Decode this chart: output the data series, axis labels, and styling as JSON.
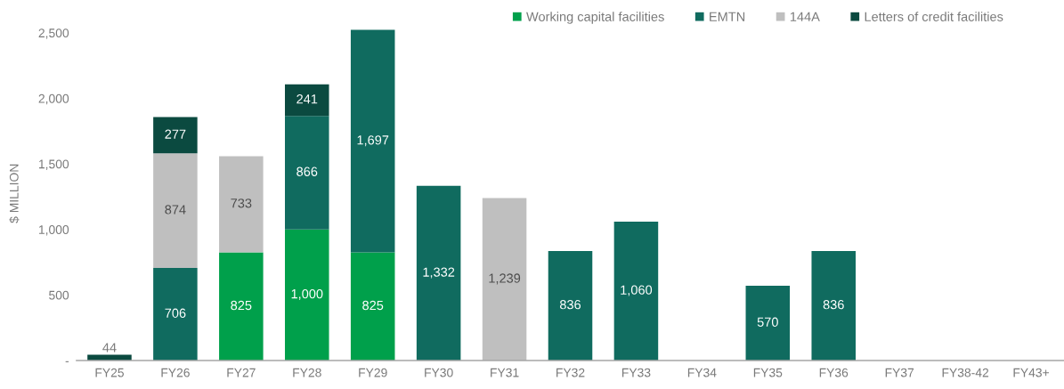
{
  "chart_data": {
    "type": "bar",
    "stacked": true,
    "ylabel": "$ MILLION",
    "categories": [
      "FY25",
      "FY26",
      "FY27",
      "FY28",
      "FY29",
      "FY30",
      "FY31",
      "FY32",
      "FY33",
      "FY34",
      "FY35",
      "FY36",
      "FY37",
      "FY38-42",
      "FY43+"
    ],
    "series": [
      {
        "name": "Working capital facilities",
        "color": "#00a04b",
        "values": [
          null,
          null,
          825,
          1000,
          825,
          null,
          null,
          null,
          null,
          null,
          null,
          null,
          null,
          null,
          null
        ],
        "value_labels": [
          null,
          null,
          "825",
          "1,000",
          "825",
          null,
          null,
          null,
          null,
          null,
          null,
          null,
          null,
          null,
          null
        ]
      },
      {
        "name": "EMTN",
        "color": "#106b5f",
        "values": [
          null,
          706,
          null,
          866,
          1697,
          1332,
          null,
          836,
          1060,
          null,
          570,
          836,
          null,
          null,
          null
        ],
        "value_labels": [
          null,
          "706",
          null,
          "866",
          "1,697",
          "1,332",
          null,
          "836",
          "1,060",
          null,
          "570",
          "836",
          null,
          null,
          null
        ]
      },
      {
        "name": "144A",
        "color": "#bfbfbf",
        "values": [
          null,
          874,
          733,
          null,
          null,
          null,
          1239,
          null,
          null,
          null,
          null,
          null,
          null,
          null,
          null
        ],
        "value_labels": [
          null,
          "874",
          "733",
          null,
          null,
          null,
          "1,239",
          null,
          null,
          null,
          null,
          null,
          null,
          null,
          null
        ]
      },
      {
        "name": "Letters of credit facilities",
        "color": "#0b4a40",
        "values": [
          44,
          277,
          null,
          241,
          null,
          null,
          null,
          null,
          null,
          null,
          null,
          null,
          null,
          null,
          null
        ],
        "value_labels": [
          "44",
          "277",
          null,
          "241",
          null,
          null,
          null,
          null,
          null,
          null,
          null,
          null,
          null,
          null,
          null
        ]
      }
    ],
    "ylim": [
      0,
      2550
    ],
    "yticks": [
      {
        "value": 0,
        "label": "-"
      },
      500,
      {
        "value": 1000,
        "label": "1,000"
      },
      {
        "value": 1500,
        "label": "1,500"
      },
      {
        "value": 2000,
        "label": "2,000"
      },
      {
        "value": 2500,
        "label": "2,500"
      }
    ],
    "legend": "top right"
  }
}
